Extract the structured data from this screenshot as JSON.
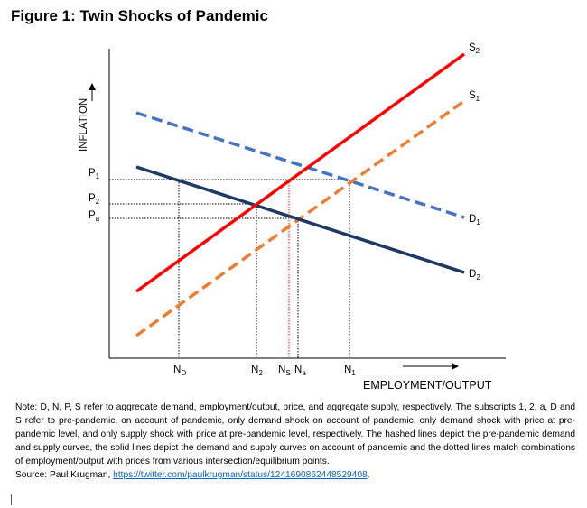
{
  "title": "Figure 1: Twin Shocks of Pandemic",
  "axes": {
    "y_label": "INFLATION",
    "x_label": "EMPLOYMENT/OUTPUT"
  },
  "price_labels": {
    "p1": {
      "main": "P",
      "sub": "1"
    },
    "p2": {
      "main": "P",
      "sub": "2"
    },
    "pa": {
      "main": "P",
      "sub": "a"
    }
  },
  "employment_labels": {
    "nd": {
      "main": "N",
      "sub": "D"
    },
    "n2": {
      "main": "N",
      "sub": "2"
    },
    "ns": {
      "main": "N",
      "sub": "S"
    },
    "na": {
      "main": "N",
      "sub": "a"
    },
    "n1": {
      "main": "N",
      "sub": "1"
    }
  },
  "curve_labels": {
    "s2": {
      "main": "S",
      "sub": "2"
    },
    "s1": {
      "main": "S",
      "sub": "1"
    },
    "d1": {
      "main": "D",
      "sub": "1"
    },
    "d2": {
      "main": "D",
      "sub": "2"
    }
  },
  "colors": {
    "s2": "#ff0000",
    "s1": "#ed7d31",
    "d1": "#4472c4",
    "d2": "#1f3864",
    "guide": "#000000",
    "guide_ns": "#ff0000"
  },
  "note": "Note: D, N, P, S refer to aggregate demand, employment/output, price, and aggregate supply, respectively. The subscripts 1, 2, a, D and S refer to pre-pandemic, on account of pandemic, only demand shock on account of pandemic, only demand shock with price at pre-pandemic level, and only supply shock with price at pre-pandemic level, respectively. The hashed lines depict the pre-pandemic demand and supply curves, the solid lines depict the demand and supply curves on account of pandemic and the dotted lines match combinations of employment/output with prices from various intersection/equilibrium points.",
  "source": {
    "prefix": "Source: Paul Krugman, ",
    "link_text": "https://twitter.com/paulkrugman/status/1241690862448529408",
    "suffix": "."
  }
}
